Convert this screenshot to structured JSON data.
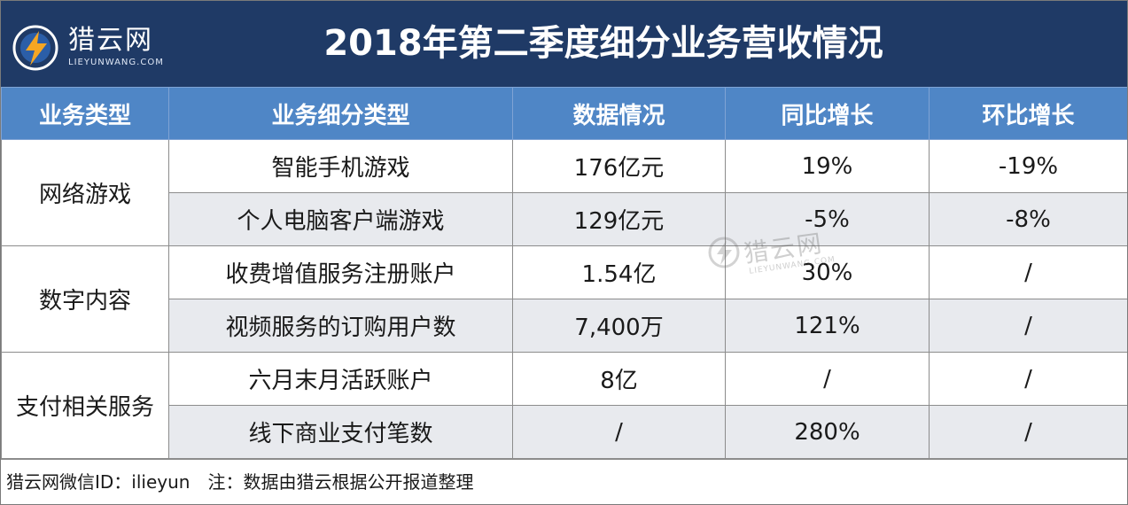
{
  "logo": {
    "cn": "猎云网",
    "en": "LIEYUNWANG.COM",
    "icon": "lightning-circle-icon"
  },
  "title": "2018年第二季度细分业务营收情况",
  "table": {
    "headers": [
      "业务类型",
      "业务细分类型",
      "数据情况",
      "同比增长",
      "环比增长"
    ],
    "groups": [
      {
        "category": "网络游戏",
        "rows": [
          {
            "sub": "智能手机游戏",
            "data": "176亿元",
            "yoy": "19%",
            "qoq": "-19%"
          },
          {
            "sub": "个人电脑客户端游戏",
            "data": "129亿元",
            "yoy": "-5%",
            "qoq": "-8%"
          }
        ]
      },
      {
        "category": "数字内容",
        "rows": [
          {
            "sub": "收费增值服务注册账户",
            "data": "1.54亿",
            "yoy": "30%",
            "qoq": "/"
          },
          {
            "sub": "视频服务的订购用户数",
            "data": "7,400万",
            "yoy": "121%",
            "qoq": "/"
          }
        ]
      },
      {
        "category": "支付相关服务",
        "rows": [
          {
            "sub": "六月末月活跃账户",
            "data": "8亿",
            "yoy": "/",
            "qoq": "/"
          },
          {
            "sub": "线下商业支付笔数",
            "data": "/",
            "yoy": "280%",
            "qoq": "/"
          }
        ]
      }
    ]
  },
  "footer": "猎云网微信ID：ilieyun　注：数据由猎云根据公开报道整理",
  "watermark": {
    "cn": "猎云网",
    "en": "LIEYUNWANG.COM"
  },
  "colors": {
    "title_bar": "#1f3a66",
    "header_row": "#4f86c6",
    "stripe": "#e8eaee"
  }
}
